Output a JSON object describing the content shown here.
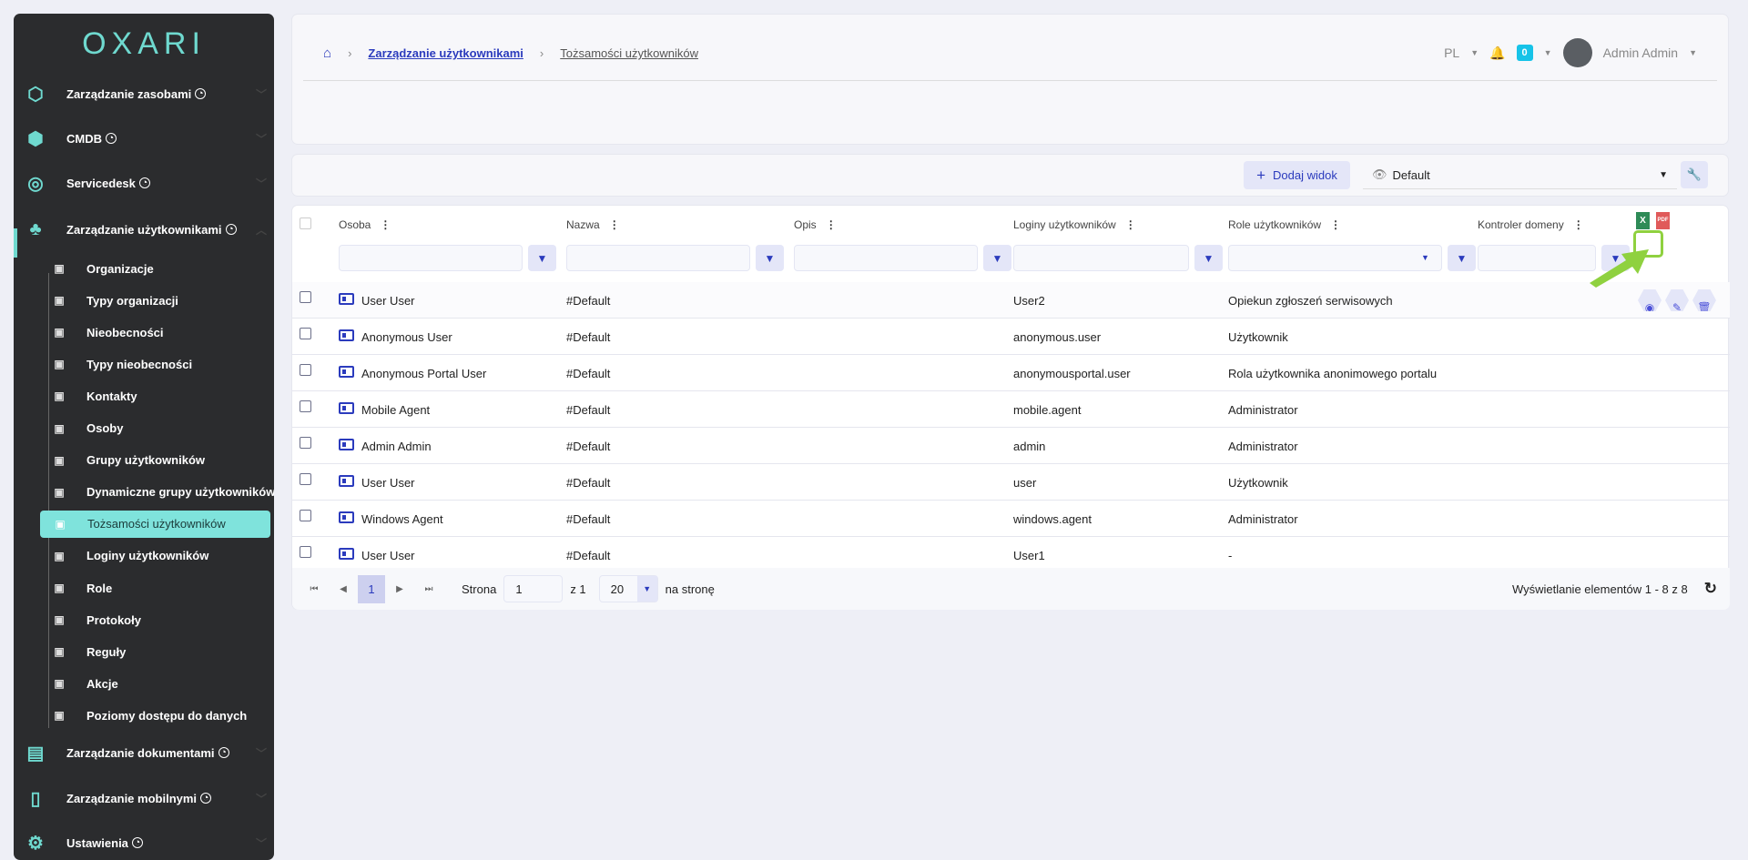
{
  "sidebar": {
    "logo": "OXARI",
    "main": [
      {
        "label": "Zarządzanie zasobami",
        "icon": "hexagons-icon"
      },
      {
        "label": "CMDB",
        "icon": "cmdb-icon"
      },
      {
        "label": "Servicedesk",
        "icon": "headset-icon"
      },
      {
        "label": "Zarządzanie użytkownikami",
        "icon": "users-tree-icon"
      }
    ],
    "sub": [
      "Organizacje",
      "Typy organizacji",
      "Nieobecności",
      "Typy nieobecności",
      "Kontakty",
      "Osoby",
      "Grupy użytkowników",
      "Dynamiczne grupy użytkowników",
      "Tożsamości użytkowników",
      "Loginy użytkowników",
      "Role",
      "Protokoły",
      "Reguły",
      "Akcje",
      "Poziomy dostępu do danych"
    ],
    "active_sub": "Tożsamości użytkowników",
    "main_after": [
      {
        "label": "Zarządzanie dokumentami",
        "icon": "documents-icon"
      },
      {
        "label": "Zarządzanie mobilnymi",
        "icon": "mobile-icon"
      },
      {
        "label": "Ustawienia",
        "icon": "settings-icon"
      }
    ]
  },
  "header": {
    "breadcrumb": [
      "Zarządzanie użytkownikami",
      "Tożsamości użytkowników"
    ],
    "lang": "PL",
    "notifications": "0",
    "user": "Admin Admin"
  },
  "toolbar": {
    "add_view": "Dodaj widok",
    "view": "Default"
  },
  "table": {
    "columns": [
      "Osoba",
      "Nazwa",
      "Opis",
      "Loginy użytkowników",
      "Role użytkowników",
      "Kontroler domeny"
    ],
    "rows": [
      [
        "User User",
        "#Default",
        "",
        "User2",
        "Opiekun zgłoszeń serwisowych",
        ""
      ],
      [
        "Anonymous User",
        "#Default",
        "",
        "anonymous.user",
        "Użytkownik",
        ""
      ],
      [
        "Anonymous Portal User",
        "#Default",
        "",
        "anonymousportal.user",
        "Rola użytkownika anonimowego portalu",
        ""
      ],
      [
        "Mobile Agent",
        "#Default",
        "",
        "mobile.agent",
        "Administrator",
        ""
      ],
      [
        "Admin Admin",
        "#Default",
        "",
        "admin",
        "Administrator",
        ""
      ],
      [
        "User User",
        "#Default",
        "",
        "user",
        "Użytkownik",
        ""
      ],
      [
        "Windows Agent",
        "#Default",
        "",
        "windows.agent",
        "Administrator",
        ""
      ],
      [
        "User User",
        "#Default",
        "",
        "User1",
        "-",
        ""
      ]
    ]
  },
  "pager": {
    "current": "1",
    "page_label": "Strona",
    "page_value": "1",
    "of": "z 1",
    "per_page": "20",
    "per_page_label": "na stronę",
    "summary": "Wyświetlanie elementów 1 - 8 z 8"
  },
  "colors": {
    "accent": "#2b3bbd",
    "brand": "#6fd9cf",
    "highlight": "#8fd13f"
  }
}
